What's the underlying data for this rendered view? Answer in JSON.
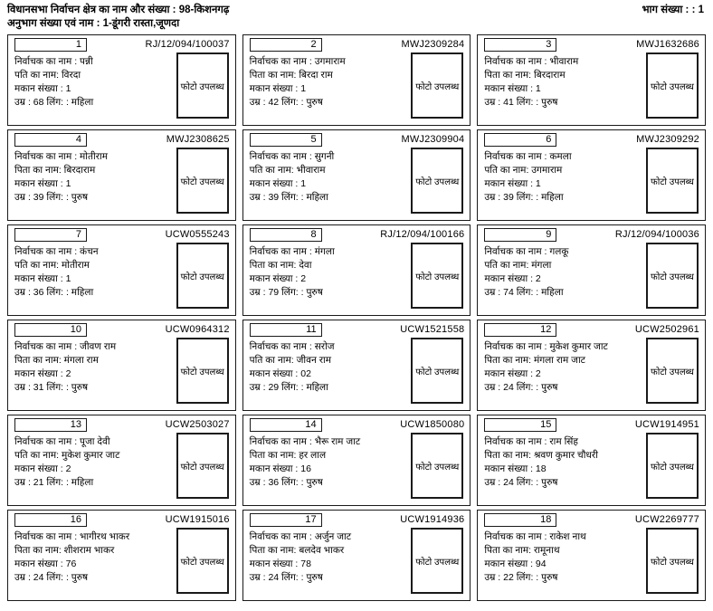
{
  "header": {
    "constituency_label": "विधानसभा निर्वाचन क्षेत्र का नाम और संख्या : 98-किशनगढ़",
    "part_label": "भाग संख्या : : 1",
    "section_label": "अनुभाग संख्या एवं नाम :  1-डूंगरी रास्ता,जूणदा"
  },
  "card_labels": {
    "name": "निर्वाचक का नाम :",
    "house": "मकान संख्या :",
    "age": "उम्र :",
    "gender": "लिंग: :",
    "photo": "फोटो उपलब्ध"
  },
  "voters": [
    {
      "serial": "1",
      "epic": "RJ/12/094/100037",
      "name": "पन्नी",
      "relation_label": "पति का नाम:",
      "relation": "विरदा",
      "house": "1",
      "age": "68",
      "gender": "महिला"
    },
    {
      "serial": "2",
      "epic": "MWJ2309284",
      "name": "उगमाराम",
      "relation_label": "पिता का नाम:",
      "relation": "बिरदा राम",
      "house": "1",
      "age": "42",
      "gender": "पुरुष"
    },
    {
      "serial": "3",
      "epic": "MWJ1632686",
      "name": "भीवाराम",
      "relation_label": "पिता का नाम:",
      "relation": "बिरदाराम",
      "house": "1",
      "age": "41",
      "gender": "पुरुष"
    },
    {
      "serial": "4",
      "epic": "MWJ2308625",
      "name": "मोतीराम",
      "relation_label": "पिता का नाम:",
      "relation": "बिरदाराम",
      "house": "1",
      "age": "39",
      "gender": "पुरुष"
    },
    {
      "serial": "5",
      "epic": "MWJ2309904",
      "name": "सुगनी",
      "relation_label": "पति का नाम:",
      "relation": "भीवाराम",
      "house": "1",
      "age": "39",
      "gender": "महिला"
    },
    {
      "serial": "6",
      "epic": "MWJ2309292",
      "name": "कमला",
      "relation_label": "पति का नाम:",
      "relation": "उगमाराम",
      "house": "1",
      "age": "39",
      "gender": "महिला"
    },
    {
      "serial": "7",
      "epic": "UCW0555243",
      "name": "कंचन",
      "relation_label": "पति का नाम:",
      "relation": "मोतीराम",
      "house": "1",
      "age": "36",
      "gender": "महिला"
    },
    {
      "serial": "8",
      "epic": "RJ/12/094/100166",
      "name": "मंगला",
      "relation_label": "पिता का नाम:",
      "relation": "देवा",
      "house": "2",
      "age": "79",
      "gender": "पुरुष"
    },
    {
      "serial": "9",
      "epic": "RJ/12/094/100036",
      "name": "गलकू",
      "relation_label": "पति का नाम:",
      "relation": "मंगला",
      "house": "2",
      "age": "74",
      "gender": "महिला"
    },
    {
      "serial": "10",
      "epic": "UCW0964312",
      "name": "जीवण राम",
      "relation_label": "पिता का नाम:",
      "relation": "मंगला राम",
      "house": "2",
      "age": "31",
      "gender": "पुरुष"
    },
    {
      "serial": "11",
      "epic": "UCW1521558",
      "name": "सरोज",
      "relation_label": "पति का नाम:",
      "relation": "जीवन राम",
      "house": "02",
      "age": "29",
      "gender": "महिला"
    },
    {
      "serial": "12",
      "epic": "UCW2502961",
      "name": "मुकेश कुमार जाट",
      "relation_label": "पिता का नाम:",
      "relation": "मंगला राम जाट",
      "house": "2",
      "age": "24",
      "gender": "पुरुष"
    },
    {
      "serial": "13",
      "epic": "UCW2503027",
      "name": "पूजा देवी",
      "relation_label": "पति का नाम:",
      "relation": "मुकेश कुमार जाट",
      "house": "2",
      "age": "21",
      "gender": "महिला"
    },
    {
      "serial": "14",
      "epic": "UCW1850080",
      "name": "भैरू राम जाट",
      "relation_label": "पिता का नाम:",
      "relation": "हर लाल",
      "house": "16",
      "age": "36",
      "gender": "पुरुष"
    },
    {
      "serial": "15",
      "epic": "UCW1914951",
      "name": "राम सिंह",
      "relation_label": "पिता का नाम:",
      "relation": "श्रवण कुमार चौधरी",
      "house": "18",
      "age": "24",
      "gender": "पुरुष"
    },
    {
      "serial": "16",
      "epic": "UCW1915016",
      "name": "भागीरथ भाकर",
      "relation_label": "पिता का नाम:",
      "relation": "शीशराम भाकर",
      "house": "76",
      "age": "24",
      "gender": "पुरुष"
    },
    {
      "serial": "17",
      "epic": "UCW1914936",
      "name": "अर्जुन जाट",
      "relation_label": "पिता का नाम:",
      "relation": "बलदेव भाकर",
      "house": "78",
      "age": "24",
      "gender": "पुरुष"
    },
    {
      "serial": "18",
      "epic": "UCW2269777",
      "name": "राकेश नाथ",
      "relation_label": "पिता का नाम:",
      "relation": "रामूनाथ",
      "house": "94",
      "age": "22",
      "gender": "पुरुष"
    }
  ]
}
